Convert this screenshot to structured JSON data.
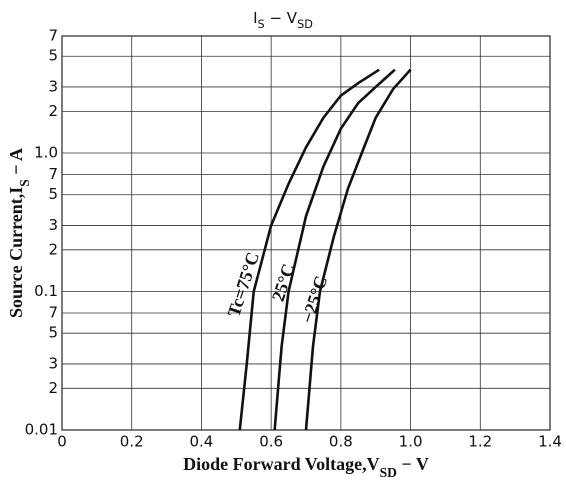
{
  "chart_data": {
    "type": "line",
    "title": [
      {
        "text": "I"
      },
      {
        "text": "S",
        "sub": true
      },
      {
        "text": "  −  V"
      },
      {
        "text": "SD",
        "sub": true
      }
    ],
    "x_label": [
      {
        "text": "Diode Forward Voltage,V"
      },
      {
        "text": "SD",
        "sub": true
      },
      {
        "text": " − V"
      }
    ],
    "y_label": [
      {
        "text": "Source Current,I"
      },
      {
        "text": "S",
        "sub": true
      },
      {
        "text": " − A"
      }
    ],
    "log_y": true,
    "grid": true,
    "xlim": [
      0,
      1.4
    ],
    "xticks": [
      0,
      0.2,
      0.4,
      0.6,
      0.8,
      {
        "value": 1,
        "label": "1.0"
      },
      1.2,
      1.4
    ],
    "ylim": [
      0.01,
      7
    ],
    "yticks": [
      0.01,
      {
        "value": 0.02,
        "label": "2"
      },
      {
        "value": 0.03,
        "label": "3"
      },
      {
        "value": 0.05,
        "label": "5"
      },
      {
        "value": 0.07,
        "label": "7"
      },
      0.1,
      {
        "value": 0.2,
        "label": "2"
      },
      {
        "value": 0.3,
        "label": "3"
      },
      {
        "value": 0.5,
        "label": "5"
      },
      {
        "value": 0.7,
        "label": "7"
      },
      {
        "value": 1,
        "label": "1.0"
      },
      2,
      3,
      5,
      7
    ],
    "series": [
      {
        "name": "Tc=75°C",
        "color": "#111111",
        "x": [
          0.51,
          0.53,
          0.55,
          0.6,
          0.65,
          0.7,
          0.75,
          0.8,
          0.85,
          0.91
        ],
        "values": [
          0.01,
          0.03,
          0.1,
          0.3,
          0.6,
          1.1,
          1.8,
          2.6,
          3.2,
          4.0
        ]
      },
      {
        "name": "25°C",
        "color": "#111111",
        "x": [
          0.61,
          0.63,
          0.65,
          0.7,
          0.75,
          0.8,
          0.85,
          0.9,
          0.955
        ],
        "values": [
          0.01,
          0.04,
          0.1,
          0.35,
          0.8,
          1.5,
          2.3,
          3.0,
          4.0
        ]
      },
      {
        "name": "−25°C",
        "color": "#111111",
        "x": [
          0.7,
          0.72,
          0.74,
          0.78,
          0.82,
          0.86,
          0.9,
          0.95,
          1.0
        ],
        "values": [
          0.01,
          0.04,
          0.1,
          0.25,
          0.55,
          1.0,
          1.8,
          2.9,
          4.0
        ]
      }
    ]
  }
}
